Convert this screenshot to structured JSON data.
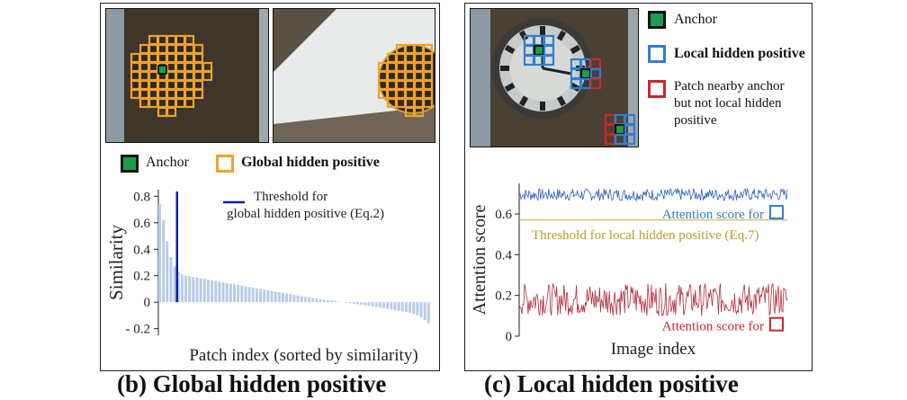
{
  "panel_b": {
    "caption": "(b) Global hidden positive",
    "legend": {
      "anchor": "Anchor",
      "global_hidden_positive": "Global hidden positive"
    },
    "colors": {
      "anchor": "#1a9e4a",
      "global_hidden_positive": "#f2a02e",
      "bars": "#b9cbe6",
      "threshold": "#0b1fa6"
    }
  },
  "panel_c": {
    "caption": "(c) Local hidden positive",
    "legend": {
      "anchor": "Anchor",
      "local_hidden_positive": "Local hidden positive",
      "nearby_line1": "Patch nearby anchor",
      "nearby_line2": "but not local hidden",
      "nearby_line3": "positive"
    },
    "colors": {
      "anchor": "#1a9e4a",
      "local_hidden_positive": "#2f7fd1",
      "nearby": "#c8272d",
      "threshold": "#d4a52b"
    }
  },
  "chart_data": [
    {
      "type": "bar",
      "ylabel": "Similarity",
      "xlabel": "Patch index (sorted by similarity)",
      "ylim": [
        -0.25,
        0.85
      ],
      "yticks": [
        0.8,
        0.6,
        0.4,
        0.2,
        0,
        -0.2
      ],
      "ytick_labels": [
        "0.8",
        "0.6",
        "0.4",
        "0.2",
        "0",
        "- 0.2"
      ],
      "threshold_legend_line1": "Threshold for",
      "threshold_legend_line2": "global hidden positive (Eq.2)",
      "threshold_index": 5,
      "values": [
        0.74,
        0.62,
        0.46,
        0.34,
        0.27,
        0.23,
        0.21,
        0.2,
        0.195,
        0.19,
        0.185,
        0.18,
        0.175,
        0.17,
        0.165,
        0.16,
        0.155,
        0.15,
        0.145,
        0.14,
        0.135,
        0.13,
        0.125,
        0.12,
        0.115,
        0.11,
        0.105,
        0.1,
        0.095,
        0.09,
        0.085,
        0.08,
        0.075,
        0.07,
        0.065,
        0.06,
        0.055,
        0.05,
        0.045,
        0.04,
        0.036,
        0.032,
        0.028,
        0.024,
        0.02,
        0.016,
        0.012,
        0.008,
        0.004,
        0.0,
        -0.004,
        -0.008,
        -0.012,
        -0.016,
        -0.02,
        -0.024,
        -0.028,
        -0.032,
        -0.036,
        -0.04,
        -0.045,
        -0.05,
        -0.055,
        -0.06,
        -0.065,
        -0.07,
        -0.075,
        -0.08,
        -0.088,
        -0.1,
        -0.115,
        -0.135,
        -0.16
      ]
    },
    {
      "type": "line",
      "ylabel": "Attention score",
      "xlabel": "Image index",
      "ylim": [
        0,
        0.75
      ],
      "yticks": [
        0.6,
        0.4,
        0.2,
        0
      ],
      "ytick_labels": [
        "0.6",
        "0.4",
        "0.2",
        "0"
      ],
      "threshold_value": 0.57,
      "threshold_label": "Threshold for local hidden positive (Eq.7)",
      "series": [
        {
          "name": "Attention score for",
          "mean": 0.695,
          "amplitude": 0.03,
          "color": "#2f5fbf"
        },
        {
          "name": "Attention score for",
          "mean": 0.18,
          "amplitude": 0.08,
          "color": "#b0303a"
        }
      ]
    }
  ]
}
